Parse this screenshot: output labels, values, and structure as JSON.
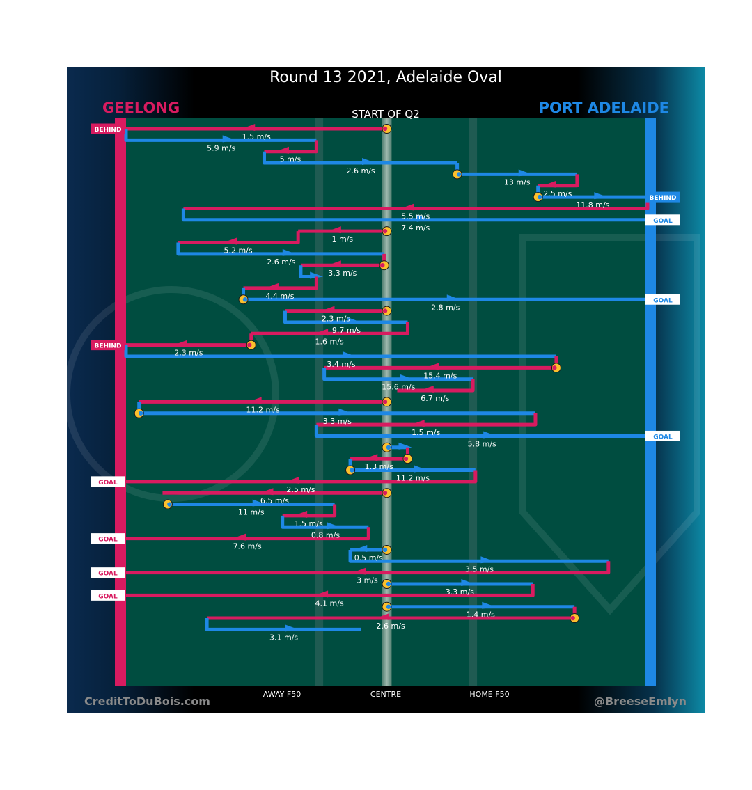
{
  "chart_data": {
    "type": "line",
    "title": "Round 13 2021, Adelaide Oval",
    "subtitle": "START OF Q2",
    "teams": {
      "left": "GEELONG",
      "right": "PORT ADELAIDE"
    },
    "x_tick_labels": [
      "AWAY F50",
      "CENTRE",
      "HOME F50"
    ],
    "credits": {
      "left": "CreditToDuBois.com",
      "right": "@BreeseEmlyn"
    },
    "colors": {
      "geelong": "#d81b60",
      "port": "#1e88e5",
      "field": "#004d40",
      "bounce": "#fbc02d"
    },
    "x_units": "field position, 0 = Geelong end, 100 = Port Adelaide end, 50 = centre",
    "chains": [
      {
        "team": "geelong",
        "x": [
          50,
          0
        ],
        "speed": "1.5 m/s",
        "start_marker": true,
        "result": "BEHIND"
      },
      {
        "team": "port",
        "x": [
          0,
          36.5
        ],
        "speed": "5.9 m/s"
      },
      {
        "team": "geelong",
        "x": [
          36.5,
          26.5
        ],
        "speed": "5 m/s"
      },
      {
        "team": "port",
        "x": [
          26.5,
          63.5
        ],
        "speed": "2.6 m/s"
      },
      {
        "team": "port",
        "x": [
          63.5,
          86.5
        ],
        "speed": "13 m/s",
        "start_marker": true
      },
      {
        "team": "geelong",
        "x": [
          86.5,
          79
        ],
        "speed": "2.5 m/s"
      },
      {
        "team": "port",
        "x": [
          79,
          100
        ],
        "speed": "11.8 m/s",
        "start_marker": true,
        "result": "BEHIND"
      },
      {
        "team": "geelong",
        "x": [
          100,
          11
        ],
        "speed": "5.5 m/s"
      },
      {
        "team": "port",
        "x": [
          11,
          100
        ],
        "speed": "7.4 m/s",
        "result": "GOAL"
      },
      {
        "team": "geelong",
        "x": [
          50,
          33
        ],
        "speed": "1 m/s",
        "start_marker": true
      },
      {
        "team": "geelong",
        "x": [
          33,
          10
        ],
        "speed": "5.2 m/s"
      },
      {
        "team": "port",
        "x": [
          10,
          49.5
        ],
        "speed": "2.6 m/s"
      },
      {
        "team": "geelong",
        "x": [
          49.5,
          33.5
        ],
        "speed": "3.3 m/s",
        "start_marker": true
      },
      {
        "team": "port",
        "x": [
          33.5,
          36.5
        ],
        "speed": ""
      },
      {
        "team": "geelong",
        "x": [
          36.5,
          22.5
        ],
        "speed": "4.4 m/s"
      },
      {
        "team": "port",
        "x": [
          22.5,
          100
        ],
        "speed": "2.8 m/s",
        "start_marker": true,
        "result": "GOAL"
      },
      {
        "team": "geelong",
        "x": [
          50,
          30.5
        ],
        "speed": "2.3 m/s",
        "start_marker": true
      },
      {
        "team": "port",
        "x": [
          30.5,
          54
        ],
        "speed": "9.7 m/s"
      },
      {
        "team": "geelong",
        "x": [
          54,
          24
        ],
        "speed": "1.6 m/s"
      },
      {
        "team": "geelong",
        "x": [
          24,
          0
        ],
        "speed": "2.3 m/s",
        "start_marker": true,
        "result": "BEHIND"
      },
      {
        "team": "port",
        "x": [
          0,
          82.5
        ],
        "speed": "3.4 m/s"
      },
      {
        "team": "geelong",
        "x": [
          82.5,
          38
        ],
        "speed": "15.4 m/s",
        "start_marker": true
      },
      {
        "team": "port",
        "x": [
          38,
          66.5
        ],
        "speed": "15.6 m/s"
      },
      {
        "team": "geelong",
        "x": [
          66.5,
          52
        ],
        "speed": "6.7 m/s"
      },
      {
        "team": "geelong",
        "x": [
          50,
          2.5
        ],
        "speed": "11.2 m/s",
        "start_marker": true
      },
      {
        "team": "port",
        "x": [
          2.5,
          78.5
        ],
        "speed": "3.3 m/s",
        "start_marker": true
      },
      {
        "team": "geelong",
        "x": [
          78.5,
          36.5
        ],
        "speed": "1.5 m/s"
      },
      {
        "team": "port",
        "x": [
          36.5,
          100
        ],
        "speed": "5.8 m/s",
        "result": "GOAL"
      },
      {
        "team": "port",
        "x": [
          50,
          54
        ],
        "speed": "",
        "start_marker": true
      },
      {
        "team": "geelong",
        "x": [
          54,
          43
        ],
        "speed": "1.3 m/s",
        "start_marker": true
      },
      {
        "team": "port",
        "x": [
          43,
          67
        ],
        "speed": "11.2 m/s",
        "start_marker": true
      },
      {
        "team": "geelong",
        "x": [
          67,
          0
        ],
        "speed": "2.5 m/s",
        "result": "GOAL"
      },
      {
        "team": "geelong",
        "x": [
          50,
          7
        ],
        "speed": "6.5 m/s",
        "start_marker": true
      },
      {
        "team": "port",
        "x": [
          8,
          40
        ],
        "speed": "11 m/s",
        "start_marker": true
      },
      {
        "team": "geelong",
        "x": [
          40,
          30
        ],
        "speed": "1.5 m/s"
      },
      {
        "team": "port",
        "x": [
          30,
          46.5
        ],
        "speed": "0.8 m/s"
      },
      {
        "team": "geelong",
        "x": [
          46.5,
          0
        ],
        "speed": "7.6 m/s",
        "result": "GOAL"
      },
      {
        "team": "port",
        "x": [
          50,
          43
        ],
        "speed": "0.5 m/s",
        "start_marker": true
      },
      {
        "team": "port",
        "x": [
          43,
          92.5
        ],
        "speed": "3.5 m/s"
      },
      {
        "team": "geelong",
        "x": [
          92.5,
          0
        ],
        "speed": "3 m/s",
        "result": "GOAL"
      },
      {
        "team": "port",
        "x": [
          50,
          78
        ],
        "speed": "3.3 m/s",
        "start_marker": true
      },
      {
        "team": "geelong",
        "x": [
          78,
          0
        ],
        "speed": "4.1 m/s",
        "result": "GOAL"
      },
      {
        "team": "port",
        "x": [
          50,
          86
        ],
        "speed": "1.4 m/s",
        "start_marker": true
      },
      {
        "team": "geelong",
        "x": [
          86,
          15.5
        ],
        "speed": "2.6 m/s",
        "start_marker": true
      },
      {
        "team": "port",
        "x": [
          15.5,
          45
        ],
        "speed": "3.1 m/s"
      }
    ]
  }
}
